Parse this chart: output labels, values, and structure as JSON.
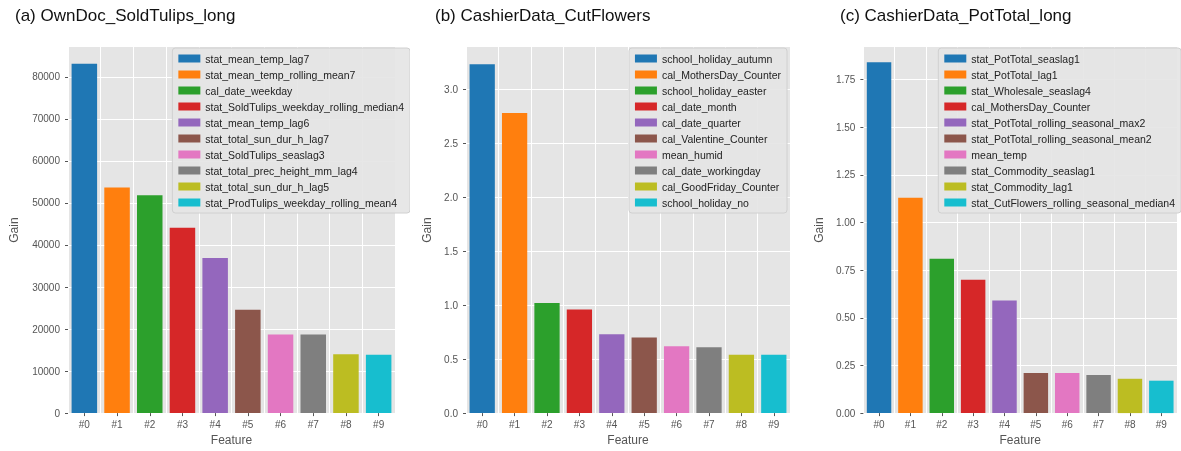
{
  "chart_data": [
    {
      "type": "bar",
      "title": "(a) OwnDoc_SoldTulips_long",
      "xlabel": "Feature",
      "ylabel": "Gain",
      "categories": [
        "#0",
        "#1",
        "#2",
        "#3",
        "#4",
        "#5",
        "#6",
        "#7",
        "#8",
        "#9"
      ],
      "ylim": [
        0,
        87100
      ],
      "yticks": [
        0,
        10000,
        20000,
        30000,
        40000,
        50000,
        60000,
        70000,
        80000
      ],
      "grid": true,
      "legend": "top right",
      "series": [
        {
          "name": "stat_mean_temp_lag7",
          "color": "#1f77b4",
          "values": [
            83100,
            null,
            null,
            null,
            null,
            null,
            null,
            null,
            null,
            null
          ]
        },
        {
          "name": "stat_mean_temp_rolling_mean7",
          "color": "#ff7f0e",
          "values": [
            null,
            53700,
            null,
            null,
            null,
            null,
            null,
            null,
            null,
            null
          ]
        },
        {
          "name": "cal_date_weekday",
          "color": "#2ca02c",
          "values": [
            null,
            null,
            51800,
            null,
            null,
            null,
            null,
            null,
            null,
            null
          ]
        },
        {
          "name": "stat_SoldTulips_weekday_rolling_median4",
          "color": "#d62728",
          "values": [
            null,
            null,
            null,
            44100,
            null,
            null,
            null,
            null,
            null,
            null
          ]
        },
        {
          "name": "stat_mean_temp_lag6",
          "color": "#9467bd",
          "values": [
            null,
            null,
            null,
            null,
            36900,
            null,
            null,
            null,
            null,
            null
          ]
        },
        {
          "name": "stat_total_sun_dur_h_lag7",
          "color": "#8c564b",
          "values": [
            null,
            null,
            null,
            null,
            null,
            24600,
            null,
            null,
            null,
            null
          ]
        },
        {
          "name": "stat_SoldTulips_seaslag3",
          "color": "#e377c2",
          "values": [
            null,
            null,
            null,
            null,
            null,
            null,
            18700,
            null,
            null,
            null
          ]
        },
        {
          "name": "stat_total_prec_height_mm_lag4",
          "color": "#7f7f7f",
          "values": [
            null,
            null,
            null,
            null,
            null,
            null,
            null,
            18700,
            null,
            null
          ]
        },
        {
          "name": "stat_total_sun_dur_h_lag5",
          "color": "#bcbd22",
          "values": [
            null,
            null,
            null,
            null,
            null,
            null,
            null,
            null,
            14000,
            null
          ]
        },
        {
          "name": "stat_ProdTulips_weekday_rolling_mean4",
          "color": "#17becf",
          "values": [
            null,
            null,
            null,
            null,
            null,
            null,
            null,
            null,
            null,
            13900
          ]
        }
      ]
    },
    {
      "type": "bar",
      "title": "(b) CashierData_CutFlowers",
      "xlabel": "Feature",
      "ylabel": "Gain",
      "categories": [
        "#0",
        "#1",
        "#2",
        "#3",
        "#4",
        "#5",
        "#6",
        "#7",
        "#8",
        "#9"
      ],
      "ylim": [
        0,
        3.39
      ],
      "yticks": [
        {
          "value": 0,
          "label": "0.0"
        },
        0.5,
        {
          "value": 1,
          "label": "1.0"
        },
        1.5,
        {
          "value": 2,
          "label": "2.0"
        },
        2.5,
        {
          "value": 3,
          "label": "3.0"
        }
      ],
      "grid": true,
      "legend": "top right",
      "series": [
        {
          "name": "school_holiday_autumn",
          "color": "#1f77b4",
          "values": [
            3.23,
            null,
            null,
            null,
            null,
            null,
            null,
            null,
            null,
            null
          ]
        },
        {
          "name": "cal_MothersDay_Counter",
          "color": "#ff7f0e",
          "values": [
            null,
            2.78,
            null,
            null,
            null,
            null,
            null,
            null,
            null,
            null
          ]
        },
        {
          "name": "school_holiday_easter",
          "color": "#2ca02c",
          "values": [
            null,
            null,
            1.02,
            null,
            null,
            null,
            null,
            null,
            null,
            null
          ]
        },
        {
          "name": "cal_date_month",
          "color": "#d62728",
          "values": [
            null,
            null,
            null,
            0.96,
            null,
            null,
            null,
            null,
            null,
            null
          ]
        },
        {
          "name": "cal_date_quarter",
          "color": "#9467bd",
          "values": [
            null,
            null,
            null,
            null,
            0.73,
            null,
            null,
            null,
            null,
            null
          ]
        },
        {
          "name": "cal_Valentine_Counter",
          "color": "#8c564b",
          "values": [
            null,
            null,
            null,
            null,
            null,
            0.7,
            null,
            null,
            null,
            null
          ]
        },
        {
          "name": "mean_humid",
          "color": "#e377c2",
          "values": [
            null,
            null,
            null,
            null,
            null,
            null,
            0.62,
            null,
            null,
            null
          ]
        },
        {
          "name": "cal_date_workingday",
          "color": "#7f7f7f",
          "values": [
            null,
            null,
            null,
            null,
            null,
            null,
            null,
            0.61,
            null,
            null
          ]
        },
        {
          "name": "cal_GoodFriday_Counter",
          "color": "#bcbd22",
          "values": [
            null,
            null,
            null,
            null,
            null,
            null,
            null,
            null,
            0.54,
            null
          ]
        },
        {
          "name": "school_holiday_no",
          "color": "#17becf",
          "values": [
            null,
            null,
            null,
            null,
            null,
            null,
            null,
            null,
            null,
            0.54
          ]
        }
      ]
    },
    {
      "type": "bar",
      "title": "(c) CashierData_PotTotal_long",
      "xlabel": "Feature",
      "ylabel": "Gain",
      "categories": [
        "#0",
        "#1",
        "#2",
        "#3",
        "#4",
        "#5",
        "#6",
        "#7",
        "#8",
        "#9"
      ],
      "ylim": [
        0,
        1.92
      ],
      "yticks": [
        {
          "value": 0,
          "label": "0.00"
        },
        0.25,
        {
          "value": 0.5,
          "label": "0.50"
        },
        0.75,
        {
          "value": 1,
          "label": "1.00"
        },
        1.25,
        {
          "value": 1.5,
          "label": "1.50"
        },
        1.75
      ],
      "grid": true,
      "legend": "top right",
      "series": [
        {
          "name": "stat_PotTotal_seaslag1",
          "color": "#1f77b4",
          "values": [
            1.84,
            null,
            null,
            null,
            null,
            null,
            null,
            null,
            null,
            null
          ]
        },
        {
          "name": "stat_PotTotal_lag1",
          "color": "#ff7f0e",
          "values": [
            null,
            1.13,
            null,
            null,
            null,
            null,
            null,
            null,
            null,
            null
          ]
        },
        {
          "name": "stat_Wholesale_seaslag4",
          "color": "#2ca02c",
          "values": [
            null,
            null,
            0.81,
            null,
            null,
            null,
            null,
            null,
            null,
            null
          ]
        },
        {
          "name": "cal_MothersDay_Counter",
          "color": "#d62728",
          "values": [
            null,
            null,
            null,
            0.7,
            null,
            null,
            null,
            null,
            null,
            null
          ]
        },
        {
          "name": "stat_PotTotal_rolling_seasonal_max2",
          "color": "#9467bd",
          "values": [
            null,
            null,
            null,
            null,
            0.59,
            null,
            null,
            null,
            null,
            null
          ]
        },
        {
          "name": "stat_PotTotal_rolling_seasonal_mean2",
          "color": "#8c564b",
          "values": [
            null,
            null,
            null,
            null,
            null,
            0.21,
            null,
            null,
            null,
            null
          ]
        },
        {
          "name": "mean_temp",
          "color": "#e377c2",
          "values": [
            null,
            null,
            null,
            null,
            null,
            null,
            0.21,
            null,
            null,
            null
          ]
        },
        {
          "name": "stat_Commodity_seaslag1",
          "color": "#7f7f7f",
          "values": [
            null,
            null,
            null,
            null,
            null,
            null,
            null,
            0.2,
            null,
            null
          ]
        },
        {
          "name": "stat_Commodity_lag1",
          "color": "#bcbd22",
          "values": [
            null,
            null,
            null,
            null,
            null,
            null,
            null,
            null,
            0.18,
            null
          ]
        },
        {
          "name": "stat_CutFlowers_rolling_seasonal_median4",
          "color": "#17becf",
          "values": [
            null,
            null,
            null,
            null,
            null,
            null,
            null,
            null,
            null,
            0.17
          ]
        }
      ]
    }
  ]
}
